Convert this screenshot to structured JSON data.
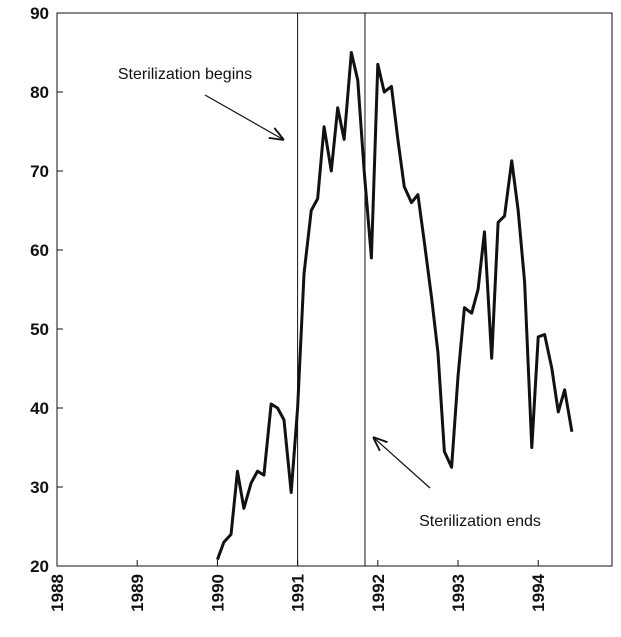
{
  "chart_data": {
    "type": "line",
    "annotations": [
      "Sterilization begins",
      "Sterilization ends"
    ],
    "event_lines": [
      1991.0,
      1991.84
    ],
    "x": [
      1990.0,
      1990.08,
      1990.17,
      1990.25,
      1990.33,
      1990.42,
      1990.5,
      1990.58,
      1990.67,
      1990.75,
      1990.83,
      1990.92,
      1991.0,
      1991.08,
      1991.17,
      1991.25,
      1991.33,
      1991.42,
      1991.5,
      1991.58,
      1991.67,
      1991.75,
      1991.83,
      1991.92,
      1992.0,
      1992.08,
      1992.17,
      1992.25,
      1992.33,
      1992.42,
      1992.5,
      1992.58,
      1992.67,
      1992.75,
      1992.83,
      1992.92,
      1993.0,
      1993.08,
      1993.17,
      1993.25,
      1993.33,
      1993.42,
      1993.5,
      1993.58,
      1993.67,
      1993.75,
      1993.83,
      1993.92,
      1994.0,
      1994.08,
      1994.17,
      1994.25,
      1994.33,
      1994.42
    ],
    "series": [
      {
        "color": "#111111",
        "values": [
          20.8,
          23,
          24,
          32,
          27.3,
          30.5,
          32,
          31.5,
          40.5,
          40,
          38.5,
          29.3,
          40,
          57,
          65,
          66.5,
          75.6,
          70,
          78,
          74,
          85,
          81.5,
          70,
          59,
          83.5,
          80,
          80.7,
          74,
          68,
          66,
          67,
          61,
          54,
          47,
          34.5,
          32.5,
          44,
          52.7,
          52,
          55,
          62.3,
          46.3,
          63.5,
          64.3,
          71.3,
          65,
          56,
          35,
          49,
          49.3,
          45,
          39.5,
          42.3,
          37
        ]
      }
    ],
    "xlim": [
      1988,
      1994.92
    ],
    "ylim": [
      20,
      90
    ],
    "xticks": [
      1988,
      1989,
      1990,
      1991,
      1992,
      1993,
      1994
    ],
    "yticks": [
      20,
      30,
      40,
      50,
      60,
      70,
      80,
      90
    ]
  }
}
